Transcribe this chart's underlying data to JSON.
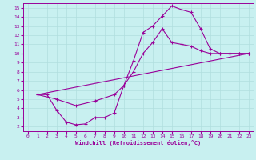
{
  "xlabel": "Windchill (Refroidissement éolien,°C)",
  "bg_color": "#c8f0f0",
  "line_color": "#990099",
  "grid_color": "#b0dede",
  "xlim": [
    -0.5,
    23.5
  ],
  "ylim": [
    1.5,
    15.5
  ],
  "xticks": [
    0,
    1,
    2,
    3,
    4,
    5,
    6,
    7,
    8,
    9,
    10,
    11,
    12,
    13,
    14,
    15,
    16,
    17,
    18,
    19,
    20,
    21,
    22,
    23
  ],
  "yticks": [
    2,
    3,
    4,
    5,
    6,
    7,
    8,
    9,
    10,
    11,
    12,
    13,
    14,
    15
  ],
  "curve1_x": [
    1,
    2,
    3,
    4,
    5,
    6,
    7,
    8,
    9,
    10,
    11,
    12,
    13,
    14,
    15,
    16,
    17,
    18,
    19,
    20,
    21,
    22,
    23
  ],
  "curve1_y": [
    5.5,
    5.5,
    3.8,
    2.5,
    2.2,
    2.3,
    3.0,
    3.0,
    3.5,
    6.5,
    9.2,
    12.3,
    13.0,
    14.1,
    15.2,
    14.8,
    14.5,
    12.7,
    10.5,
    10.0,
    10.0,
    10.0,
    10.0
  ],
  "curve2_x": [
    1,
    23
  ],
  "curve2_y": [
    5.5,
    10.0
  ],
  "curve3_x": [
    1,
    3,
    5,
    7,
    9,
    10,
    11,
    12,
    13,
    14,
    15,
    16,
    17,
    18,
    19,
    20,
    21,
    22,
    23
  ],
  "curve3_y": [
    5.5,
    5.0,
    4.3,
    4.8,
    5.5,
    6.5,
    8.0,
    10.0,
    11.2,
    12.7,
    11.2,
    11.0,
    10.8,
    10.3,
    10.0,
    10.0,
    10.0,
    10.0,
    10.0
  ]
}
